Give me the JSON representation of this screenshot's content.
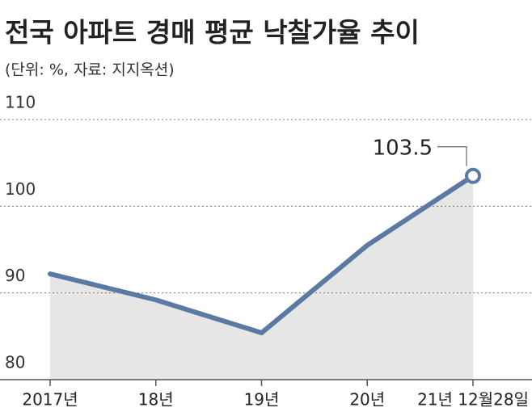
{
  "chart_data": {
    "type": "line",
    "title": "전국 아파트 경매 평균 낙찰가율 추이",
    "subtitle": "(단위: %, 자료: 지지옥션)",
    "categories": [
      "2017년",
      "18년",
      "19년",
      "20년",
      "21년 12월28일"
    ],
    "values": [
      92.2,
      89.2,
      85.4,
      95.5,
      103.5
    ],
    "color": "#5a7aa3",
    "area_color": "#e6e6e6",
    "ylim": [
      80,
      110
    ],
    "yticks": [
      80,
      90,
      100,
      110
    ],
    "grid": true
  }
}
